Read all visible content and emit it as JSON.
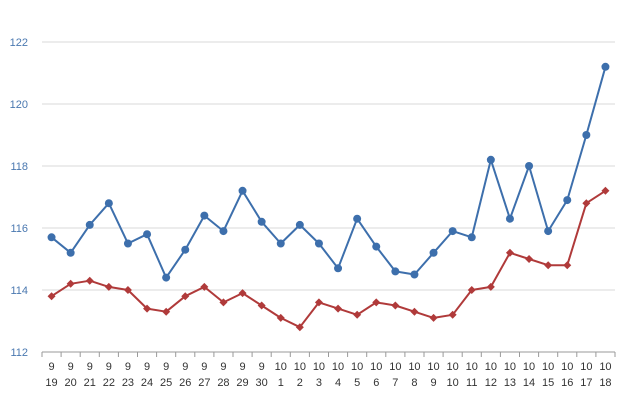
{
  "chart_data": {
    "type": "line",
    "title": "",
    "xlabel": "",
    "ylabel": "",
    "ylim": [
      112,
      122
    ],
    "yticks": [
      "112",
      "114",
      "116",
      "118",
      "120",
      "122"
    ],
    "grid": true,
    "legend": "none",
    "categories": [
      {
        "month": "9",
        "day": "19"
      },
      {
        "month": "9",
        "day": "20"
      },
      {
        "month": "9",
        "day": "21"
      },
      {
        "month": "9",
        "day": "22"
      },
      {
        "month": "9",
        "day": "23"
      },
      {
        "month": "9",
        "day": "24"
      },
      {
        "month": "9",
        "day": "25"
      },
      {
        "month": "9",
        "day": "26"
      },
      {
        "month": "9",
        "day": "27"
      },
      {
        "month": "9",
        "day": "28"
      },
      {
        "month": "9",
        "day": "29"
      },
      {
        "month": "9",
        "day": "30"
      },
      {
        "month": "10",
        "day": "1"
      },
      {
        "month": "10",
        "day": "2"
      },
      {
        "month": "10",
        "day": "3"
      },
      {
        "month": "10",
        "day": "4"
      },
      {
        "month": "10",
        "day": "5"
      },
      {
        "month": "10",
        "day": "6"
      },
      {
        "month": "10",
        "day": "7"
      },
      {
        "month": "10",
        "day": "8"
      },
      {
        "month": "10",
        "day": "9"
      },
      {
        "month": "10",
        "day": "10"
      },
      {
        "month": "10",
        "day": "11"
      },
      {
        "month": "10",
        "day": "12"
      },
      {
        "month": "10",
        "day": "13"
      },
      {
        "month": "10",
        "day": "14"
      },
      {
        "month": "10",
        "day": "15"
      },
      {
        "month": "10",
        "day": "16"
      },
      {
        "month": "10",
        "day": "17"
      },
      {
        "month": "10",
        "day": "18"
      }
    ],
    "series": [
      {
        "color": "#3d6fac",
        "marker": "circle",
        "values": [
          115.7,
          115.2,
          116.1,
          116.8,
          115.5,
          115.8,
          114.4,
          115.3,
          116.4,
          115.9,
          117.2,
          116.2,
          115.5,
          116.1,
          115.5,
          114.7,
          116.3,
          115.4,
          114.6,
          114.5,
          115.2,
          115.9,
          115.7,
          118.2,
          116.3,
          118.0,
          115.9,
          116.9,
          119.0,
          121.2
        ]
      },
      {
        "color": "#b03a3a",
        "marker": "diamond",
        "values": [
          113.8,
          114.2,
          114.3,
          114.1,
          114.0,
          113.4,
          113.3,
          113.8,
          114.1,
          113.6,
          113.9,
          113.5,
          113.1,
          112.8,
          113.6,
          113.4,
          113.2,
          113.6,
          113.5,
          113.3,
          113.1,
          113.2,
          114.0,
          114.1,
          115.2,
          115.0,
          114.8,
          114.8,
          116.8,
          117.2
        ]
      }
    ]
  }
}
